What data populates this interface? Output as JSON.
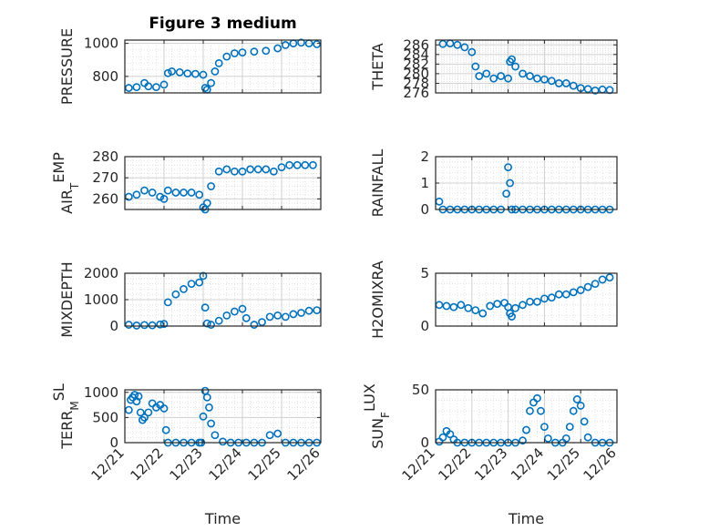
{
  "figure_title": "Figure 3 medium",
  "x_tick_labels": [
    "12/21",
    "12/22",
    "12/23",
    "12/24",
    "12/25",
    "12/26"
  ],
  "chart_data": [
    {
      "id": "pressure",
      "type": "scatter",
      "title": "Figure 3 medium",
      "ylabel": "PRESSURE",
      "ylabel_sub": "",
      "ylabel_after": "",
      "xlabel": "",
      "xlim": [
        0,
        5
      ],
      "ylim": [
        700,
        1020
      ],
      "yticks": [
        800,
        1000
      ],
      "grid": true,
      "x": [
        0.1,
        0.3,
        0.5,
        0.6,
        0.8,
        1.0,
        1.1,
        1.2,
        1.4,
        1.6,
        1.8,
        2.0,
        2.05,
        2.1,
        2.2,
        2.3,
        2.4,
        2.6,
        2.8,
        3.0,
        3.3,
        3.6,
        3.9,
        4.1,
        4.3,
        4.5,
        4.7,
        4.9
      ],
      "y": [
        730,
        735,
        760,
        740,
        735,
        750,
        820,
        830,
        825,
        818,
        815,
        810,
        730,
        720,
        760,
        830,
        880,
        920,
        940,
        945,
        950,
        955,
        970,
        990,
        1000,
        1005,
        1000,
        995
      ]
    },
    {
      "id": "theta",
      "type": "scatter",
      "title": "",
      "ylabel": "THETA",
      "ylabel_sub": "",
      "ylabel_after": "",
      "xlabel": "",
      "xlim": [
        0,
        5
      ],
      "ylim": [
        276,
        287
      ],
      "yticks": [
        276,
        278,
        280,
        282,
        284,
        286
      ],
      "grid": true,
      "x": [
        0.2,
        0.4,
        0.6,
        0.8,
        1.0,
        1.1,
        1.2,
        1.4,
        1.6,
        1.8,
        2.0,
        2.05,
        2.1,
        2.2,
        2.4,
        2.6,
        2.8,
        3.0,
        3.2,
        3.4,
        3.6,
        3.8,
        4.0,
        4.2,
        4.4,
        4.6,
        4.8
      ],
      "y": [
        286.2,
        286.3,
        286.0,
        285.5,
        284.5,
        281.5,
        279.5,
        280.0,
        279.0,
        279.5,
        279.0,
        282.5,
        283.0,
        281.5,
        280.0,
        279.5,
        279.0,
        278.8,
        278.5,
        278.0,
        278.0,
        277.5,
        277.0,
        276.8,
        276.5,
        276.7,
        276.6
      ]
    },
    {
      "id": "air_temp",
      "type": "scatter",
      "title": "",
      "ylabel": "AIR",
      "ylabel_sub": "T",
      "ylabel_after": "EMP",
      "xlabel": "",
      "xlim": [
        0,
        5
      ],
      "ylim": [
        255,
        280
      ],
      "yticks": [
        260,
        270,
        280
      ],
      "grid": true,
      "x": [
        0.1,
        0.3,
        0.5,
        0.7,
        0.9,
        1.0,
        1.1,
        1.3,
        1.5,
        1.7,
        1.9,
        2.0,
        2.05,
        2.1,
        2.2,
        2.4,
        2.6,
        2.8,
        3.0,
        3.2,
        3.4,
        3.6,
        3.8,
        4.0,
        4.2,
        4.4,
        4.6,
        4.8
      ],
      "y": [
        261,
        262,
        264,
        263,
        261,
        260,
        264,
        263,
        263,
        263,
        262,
        256,
        255,
        258,
        266,
        273,
        274,
        273,
        273,
        274,
        274,
        274,
        273,
        275,
        276,
        276,
        276,
        276
      ]
    },
    {
      "id": "rainfall",
      "type": "scatter",
      "title": "",
      "ylabel": "RAINFALL",
      "ylabel_sub": "",
      "ylabel_after": "",
      "xlabel": "",
      "xlim": [
        0,
        5
      ],
      "ylim": [
        0,
        2
      ],
      "yticks": [
        0,
        1,
        2
      ],
      "grid": true,
      "x": [
        0.1,
        0.2,
        0.4,
        0.6,
        0.8,
        1.0,
        1.2,
        1.4,
        1.6,
        1.8,
        1.95,
        2.0,
        2.05,
        2.1,
        2.2,
        2.4,
        2.6,
        2.8,
        3.0,
        3.2,
        3.4,
        3.6,
        3.8,
        4.0,
        4.2,
        4.4,
        4.6,
        4.8
      ],
      "y": [
        0.3,
        0,
        0,
        0,
        0,
        0,
        0,
        0,
        0,
        0,
        0.6,
        1.6,
        1.0,
        0,
        0,
        0,
        0,
        0,
        0,
        0,
        0,
        0,
        0,
        0,
        0,
        0,
        0,
        0
      ]
    },
    {
      "id": "mixdepth",
      "type": "scatter",
      "title": "",
      "ylabel": "MIXDEPTH",
      "ylabel_sub": "",
      "ylabel_after": "",
      "xlabel": "",
      "xlim": [
        0,
        5
      ],
      "ylim": [
        0,
        2000
      ],
      "yticks": [
        0,
        1000,
        2000
      ],
      "grid": true,
      "x": [
        0.1,
        0.3,
        0.5,
        0.7,
        0.9,
        1.0,
        1.1,
        1.3,
        1.5,
        1.7,
        1.9,
        2.0,
        2.05,
        2.1,
        2.2,
        2.4,
        2.6,
        2.8,
        3.0,
        3.1,
        3.3,
        3.5,
        3.7,
        3.9,
        4.1,
        4.3,
        4.5,
        4.7,
        4.9
      ],
      "y": [
        50,
        20,
        40,
        30,
        60,
        80,
        900,
        1200,
        1400,
        1600,
        1650,
        1900,
        700,
        100,
        50,
        200,
        400,
        550,
        650,
        300,
        50,
        150,
        350,
        400,
        350,
        450,
        500,
        580,
        600
      ]
    },
    {
      "id": "h2omixra",
      "type": "scatter",
      "title": "",
      "ylabel": "H2OMIXRA",
      "ylabel_sub": "",
      "ylabel_after": "",
      "xlabel": "",
      "xlim": [
        0,
        5
      ],
      "ylim": [
        0,
        5
      ],
      "yticks": [
        0,
        5
      ],
      "grid": true,
      "x": [
        0.1,
        0.3,
        0.5,
        0.7,
        0.9,
        1.1,
        1.3,
        1.5,
        1.7,
        1.9,
        2.0,
        2.05,
        2.1,
        2.2,
        2.4,
        2.6,
        2.8,
        3.0,
        3.2,
        3.4,
        3.6,
        3.8,
        4.0,
        4.2,
        4.4,
        4.6,
        4.8
      ],
      "y": [
        2.0,
        1.9,
        1.8,
        2.0,
        1.7,
        1.5,
        1.2,
        1.9,
        2.1,
        2.2,
        1.8,
        1.2,
        0.9,
        1.7,
        2.0,
        2.3,
        2.3,
        2.6,
        2.7,
        3.0,
        3.0,
        3.2,
        3.4,
        3.7,
        4.0,
        4.4,
        4.6
      ]
    },
    {
      "id": "terr_msl",
      "type": "scatter",
      "title": "",
      "ylabel": "TERR",
      "ylabel_sub": "M",
      "ylabel_after": "SL",
      "xlabel": "Time",
      "xlim": [
        0,
        5
      ],
      "ylim": [
        0,
        1050
      ],
      "yticks": [
        0,
        500,
        1000
      ],
      "grid": true,
      "x": [
        0.1,
        0.15,
        0.2,
        0.25,
        0.3,
        0.35,
        0.4,
        0.45,
        0.5,
        0.6,
        0.7,
        0.8,
        0.9,
        1.0,
        1.05,
        1.1,
        1.3,
        1.5,
        1.7,
        1.9,
        1.95,
        2.0,
        2.05,
        2.1,
        2.15,
        2.2,
        2.3,
        2.5,
        2.7,
        2.9,
        3.1,
        3.3,
        3.5,
        3.7,
        3.9,
        4.1,
        4.3,
        4.5,
        4.7,
        4.9
      ],
      "y": [
        650,
        850,
        900,
        950,
        820,
        920,
        600,
        450,
        500,
        600,
        780,
        700,
        750,
        680,
        250,
        0,
        0,
        0,
        0,
        0,
        0,
        520,
        1030,
        900,
        700,
        380,
        150,
        20,
        0,
        0,
        0,
        0,
        0,
        150,
        180,
        0,
        0,
        0,
        0,
        0
      ]
    },
    {
      "id": "sun_flux",
      "type": "scatter",
      "title": "",
      "ylabel": "SUN",
      "ylabel_sub": "F",
      "ylabel_after": "LUX",
      "xlabel": "Time",
      "xlim": [
        0,
        5
      ],
      "ylim": [
        0,
        50
      ],
      "yticks": [
        0,
        50
      ],
      "grid": true,
      "x": [
        0.1,
        0.2,
        0.3,
        0.4,
        0.5,
        0.6,
        0.8,
        1.0,
        1.2,
        1.4,
        1.6,
        1.8,
        2.0,
        2.2,
        2.4,
        2.5,
        2.6,
        2.7,
        2.8,
        2.9,
        3.0,
        3.1,
        3.3,
        3.5,
        3.6,
        3.7,
        3.8,
        3.9,
        4.0,
        4.1,
        4.2,
        4.4,
        4.6,
        4.8
      ],
      "y": [
        1,
        5,
        11,
        8,
        3,
        0,
        0,
        0,
        0,
        0,
        0,
        0,
        0,
        0,
        2,
        12,
        30,
        38,
        42,
        30,
        15,
        4,
        0,
        0,
        4,
        15,
        30,
        41,
        35,
        20,
        5,
        0,
        0,
        0
      ]
    }
  ]
}
